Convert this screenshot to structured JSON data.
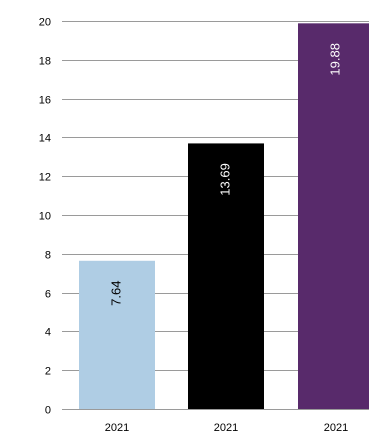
{
  "chart_data": {
    "type": "bar",
    "categories": [
      "2021",
      "2021",
      "2021"
    ],
    "values": [
      7.64,
      13.69,
      19.88
    ],
    "bar_colors": [
      "#afcde4",
      "#000000",
      "#582a6b"
    ],
    "value_label_colors": [
      "#000000",
      "#ffffff",
      "#ffffff"
    ],
    "title": "",
    "xlabel": "",
    "ylabel": "",
    "ylim": [
      0,
      20
    ],
    "yticks": [
      0,
      2,
      4,
      6,
      8,
      10,
      12,
      14,
      16,
      18,
      20
    ],
    "grid": true,
    "gridline_color": "#9a9a9a",
    "value_labels_rotated": true
  }
}
